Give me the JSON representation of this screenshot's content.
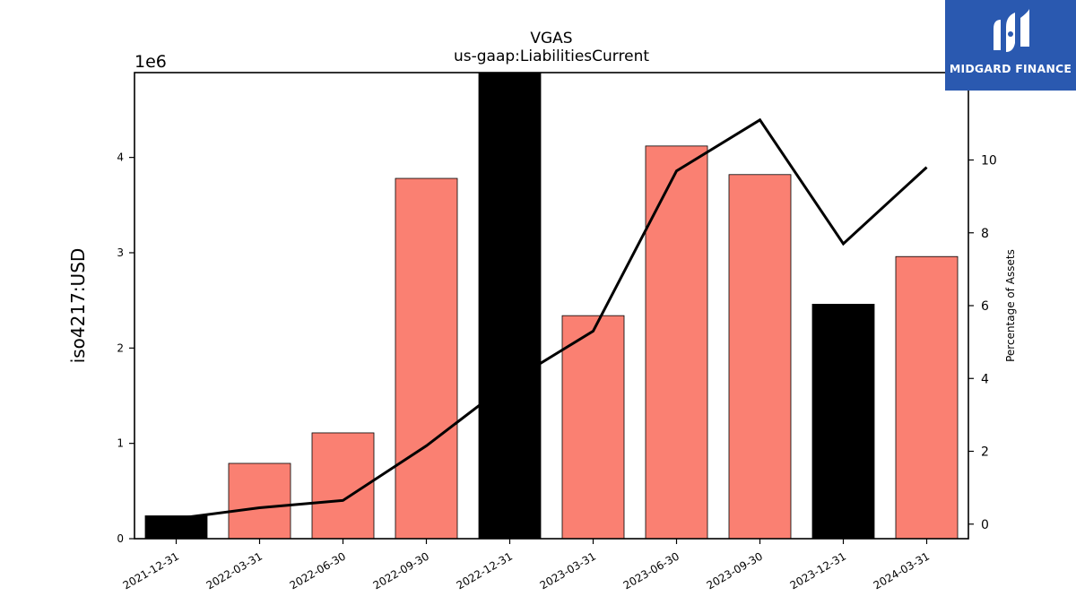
{
  "chart_data": {
    "type": "bar",
    "title": "VGAS",
    "subtitle": "us-gaap:LiabilitiesCurrent",
    "ylabel": "iso4217:USD",
    "y_offset_label": "1e6",
    "y2label": "Percentage of Assets",
    "categories": [
      "2021-12-31",
      "2022-03-31",
      "2022-06-30",
      "2022-09-30",
      "2022-12-31",
      "2023-03-31",
      "2023-06-30",
      "2023-09-30",
      "2023-12-31",
      "2024-03-31"
    ],
    "values": [
      240000,
      790000,
      1110000,
      3780000,
      4890000,
      2340000,
      4120000,
      3820000,
      2460000,
      2960000
    ],
    "bar_colors": [
      "#000000",
      "#fa8072",
      "#fa8072",
      "#fa8072",
      "#000000",
      "#fa8072",
      "#fa8072",
      "#fa8072",
      "#000000",
      "#fa8072"
    ],
    "ylim": [
      0,
      4890000
    ],
    "yticks": [
      0,
      1,
      2,
      3,
      4
    ],
    "line_series": {
      "values": [
        0.15,
        0.45,
        0.65,
        2.15,
        3.9,
        5.3,
        9.7,
        11.1,
        7.7,
        9.8
      ],
      "color": "#000000"
    },
    "y2lim": [
      -0.4,
      12.4
    ],
    "y2ticks": [
      0,
      2,
      4,
      6,
      8,
      10
    ],
    "grid": false
  },
  "logo": {
    "text": "MIDGARD FINANCE",
    "color": "#2a59b0"
  }
}
